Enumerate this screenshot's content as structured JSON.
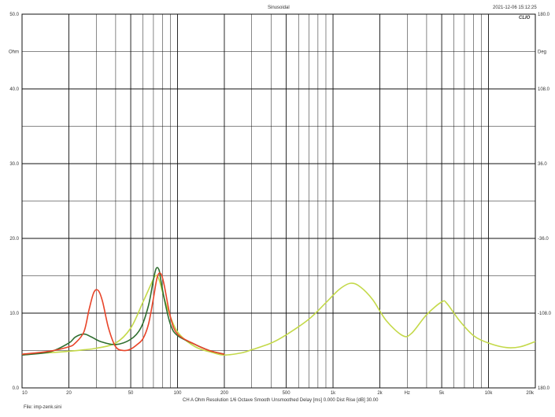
{
  "header": {
    "title": "Sinusoidal",
    "timestamp": "2021-12-06 15:12:25",
    "brand": "CLIO"
  },
  "footer": {
    "settings": "CH A   Ohm   Resolution 1/6 Octave   Smooth Unsmoothed   Delay [ms] 0.000   Dist Rise [dB] 30.00",
    "file": "File: imp-zenk.sini"
  },
  "colors": {
    "background": "#ffffff",
    "grid": "#111111",
    "red": "#e8452a",
    "dark_green": "#2f6e2f",
    "yellow_green": "#c4d94a"
  },
  "chart_data": {
    "type": "line",
    "title": "Sinusoidal",
    "xscale": "log",
    "xlim": [
      10,
      20000
    ],
    "ylim": [
      0,
      50
    ],
    "ylabel": "Ohm",
    "y2label": "Deg",
    "y2lim": [
      -180,
      180
    ],
    "x_tick_labels": [
      "10",
      "20",
      "50",
      "100",
      "200",
      "500",
      "1k",
      "2k",
      "Hz",
      "5k",
      "10k",
      "20k"
    ],
    "y_tick_labels": [
      "0.0",
      "10.0",
      "20.0",
      "30.0",
      "40.0",
      "50.0"
    ],
    "y_unit_label": "Ohm",
    "y2_tick_labels": [
      "180.0",
      "-108.0",
      "-36.0",
      "36.0",
      "108.0",
      "180.0"
    ],
    "y2_unit_label": "Deg",
    "grid": true,
    "series": [
      {
        "color": "#c4d94a",
        "x": [
          10,
          15,
          20,
          25,
          30,
          40,
          50,
          60,
          68,
          72,
          76,
          85,
          100,
          130,
          170,
          200,
          260,
          300,
          400,
          500,
          700,
          900,
          1100,
          1300,
          1500,
          1800,
          2200,
          2800,
          3200,
          4000,
          5000,
          5400,
          6500,
          8000,
          10000,
          13000,
          16000,
          20000
        ],
        "y": [
          4.5,
          4.7,
          4.9,
          5.1,
          5.3,
          6.0,
          8.0,
          11.5,
          14.0,
          15.0,
          14.5,
          11.0,
          7.5,
          5.5,
          4.7,
          4.4,
          4.7,
          5.1,
          6.0,
          7.1,
          9.2,
          11.4,
          13.2,
          14.0,
          13.5,
          11.8,
          9.0,
          7.0,
          7.3,
          9.8,
          11.5,
          11.3,
          9.0,
          7.0,
          6.0,
          5.4,
          5.5,
          6.2
        ]
      },
      {
        "color": "#2f6e2f",
        "x": [
          10,
          15,
          20,
          22,
          25,
          28,
          32,
          40,
          50,
          58,
          65,
          70,
          73,
          76,
          78,
          82,
          90,
          100,
          130,
          160,
          200
        ],
        "y": [
          4.4,
          4.8,
          6.0,
          6.8,
          7.2,
          6.8,
          6.2,
          5.8,
          6.5,
          8.0,
          11.0,
          14.5,
          16.0,
          15.8,
          14.5,
          12.0,
          8.5,
          7.0,
          5.8,
          5.0,
          4.5
        ]
      },
      {
        "color": "#e8452a",
        "x": [
          10,
          15,
          20,
          22,
          25,
          27,
          29,
          31,
          33,
          36,
          40,
          45,
          50,
          55,
          60,
          65,
          70,
          74,
          78,
          82,
          90,
          100,
          130,
          160,
          200
        ],
        "y": [
          4.5,
          4.9,
          5.5,
          6.0,
          7.5,
          10.5,
          12.8,
          13.0,
          11.5,
          8.0,
          5.5,
          5.0,
          5.2,
          5.8,
          6.6,
          8.5,
          12.0,
          14.8,
          15.3,
          13.8,
          9.5,
          7.2,
          5.8,
          5.0,
          4.5
        ]
      }
    ]
  }
}
